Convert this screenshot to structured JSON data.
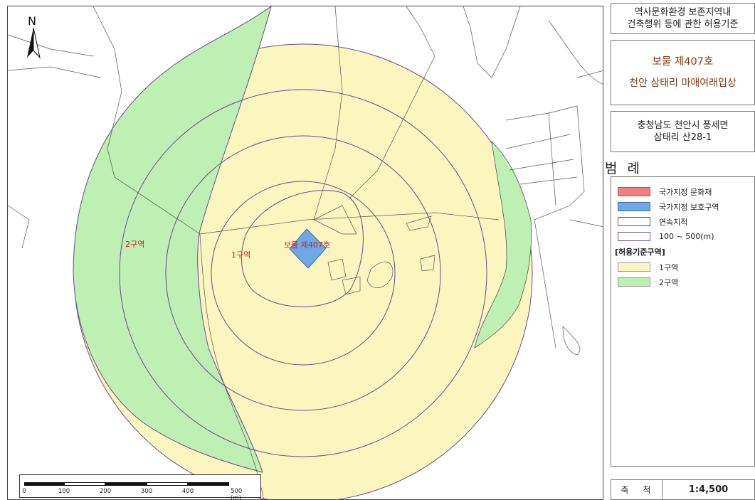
{
  "sidebar": {
    "title_line1": "역사문화환경 보존지역내",
    "title_line2": "건축행위 등에 관한 허용기준",
    "heritage_name": "보물 제407호",
    "heritage_desc": "천안 삼태리 마애여래입상",
    "address_line1": "충청남도 천안시 풍세면",
    "address_line2": "삼태리 산28-1",
    "legend_title": "범 례",
    "legend_items": [
      {
        "label": "국가지정 문화재",
        "fill": "#f08080",
        "border": "#c05050"
      },
      {
        "label": "국가지정 보호구역",
        "fill": "#6fa8e8",
        "border": "#3b6fb0"
      },
      {
        "label": "연속지적",
        "fill": "#ffffff",
        "border": "#555555"
      },
      {
        "label": "100 ~ 500(m)",
        "fill": "#ffffff",
        "border": "#7a4a9a"
      }
    ],
    "legend_subheader": "[허용기준구역]",
    "zone_items": [
      {
        "label": "1구역",
        "fill": "#fbf6c0",
        "border": "#999999"
      },
      {
        "label": "2구역",
        "fill": "#bdf0b2",
        "border": "#999999"
      }
    ],
    "scale_label": "축 척",
    "scale_value": "1:4,500"
  },
  "map": {
    "north_label": "N",
    "zone1_label": "1구역",
    "zone2_label": "2구역",
    "heritage_label": "보물 제407호",
    "colors": {
      "zone1": "#fbf6c0",
      "zone2": "#bdf0b2",
      "heritage": "#6fa8e8",
      "ring": "#6a4a8a",
      "parcel": "#555555"
    },
    "scalebar_ticks": [
      "0",
      "100",
      "200",
      "300",
      "400",
      "500 (m)"
    ]
  }
}
